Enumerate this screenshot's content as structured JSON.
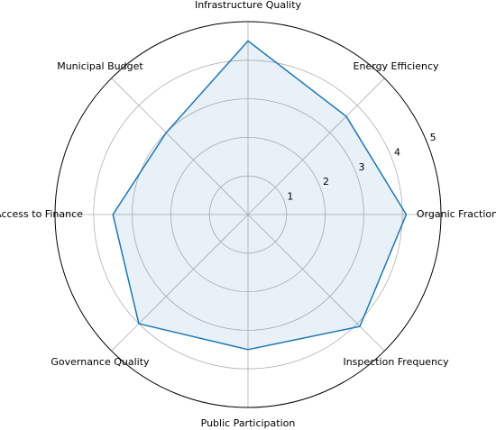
{
  "chart_data": {
    "type": "radar",
    "categories": [
      "Infrastructure Quality",
      "Energy Efficiency",
      "Organic Fraction",
      "Inspection Frequency",
      "Public Participation",
      "Governance Quality",
      "Access to Finance",
      "Municipal Budget"
    ],
    "values": [
      4.5,
      3.6,
      4.1,
      4.1,
      3.5,
      4.0,
      3.5,
      3.0
    ],
    "color": "#1f77b4",
    "ylim": [
      0,
      5
    ],
    "yticks": [
      1,
      2,
      3,
      4,
      5
    ],
    "grid": true
  }
}
